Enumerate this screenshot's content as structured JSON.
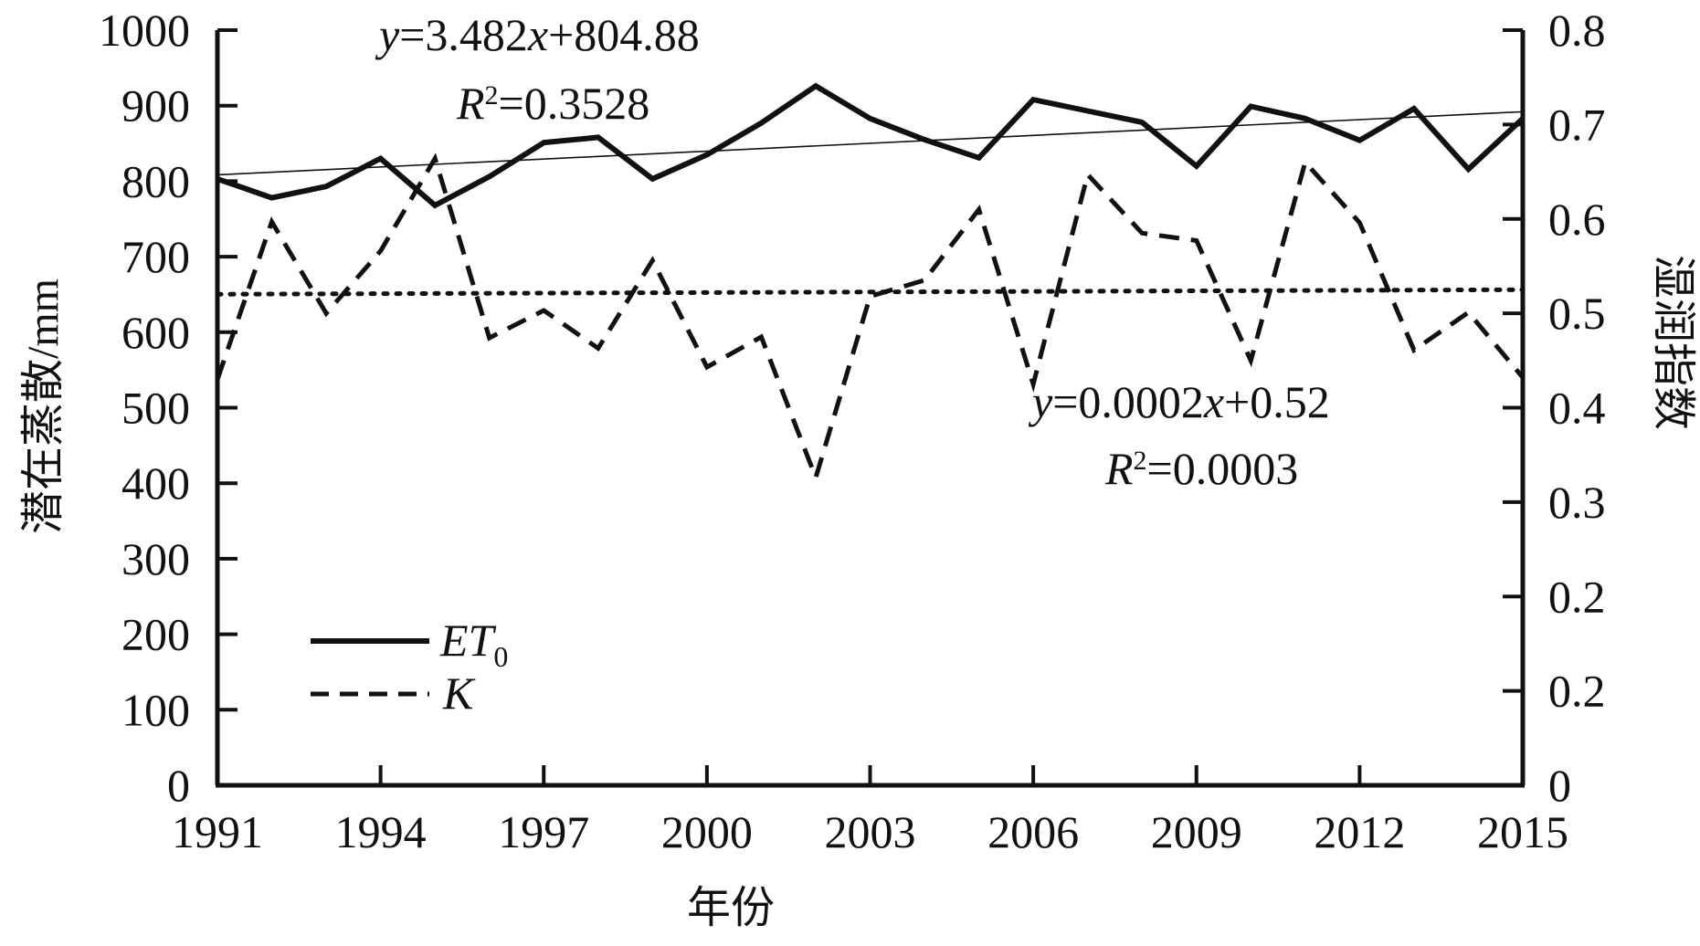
{
  "chart_data": {
    "type": "line",
    "xlabel": "年份",
    "ylabel_left": "潜在蒸散/mm",
    "ylabel_right": "湿润指数",
    "x_ticks": [
      "1991",
      "1994",
      "1997",
      "2000",
      "2003",
      "2006",
      "2009",
      "2012",
      "2015"
    ],
    "y_left_ticks": [
      "0",
      "100",
      "200",
      "300",
      "400",
      "500",
      "600",
      "700",
      "800",
      "900",
      "1000"
    ],
    "y_right_ticks": [
      "0",
      "0.2",
      "0.2",
      "0.3",
      "0.4",
      "0.5",
      "0.6",
      "0.7",
      "0.8"
    ],
    "xlim": [
      1991,
      2015
    ],
    "ylim_left": [
      0,
      1000
    ],
    "ylim_right": [
      0,
      0.8
    ],
    "legend_position": "bottom-left",
    "series": [
      {
        "name": "ET",
        "name_sub": "0",
        "axis": "left",
        "style": "solid",
        "x": [
          1991,
          1992,
          1993,
          1994,
          1995,
          1996,
          1997,
          1998,
          1999,
          2000,
          2001,
          2002,
          2003,
          2004,
          2005,
          2006,
          2007,
          2008,
          2009,
          2010,
          2011,
          2012,
          2013,
          2014,
          2015
        ],
        "values": [
          803,
          778,
          793,
          830,
          768,
          806,
          851,
          858,
          803,
          835,
          877,
          926,
          883,
          855,
          831,
          908,
          893,
          878,
          820,
          899,
          883,
          854,
          896,
          816,
          883
        ]
      },
      {
        "name": "K",
        "axis": "right",
        "style": "dashed",
        "x": [
          1991,
          1992,
          1993,
          1994,
          1995,
          1996,
          1997,
          1998,
          1999,
          2000,
          2001,
          2002,
          2003,
          2004,
          2005,
          2006,
          2007,
          2008,
          2009,
          2010,
          2011,
          2012,
          2013,
          2014,
          2015
        ],
        "values": [
          0.43,
          0.597,
          0.5,
          0.566,
          0.664,
          0.474,
          0.503,
          0.463,
          0.556,
          0.443,
          0.475,
          0.326,
          0.518,
          0.535,
          0.61,
          0.425,
          0.647,
          0.585,
          0.577,
          0.45,
          0.66,
          0.596,
          0.461,
          0.501,
          0.432
        ]
      }
    ],
    "trendlines": [
      {
        "series": "ET",
        "axis": "left",
        "style": "thin-solid",
        "slope": 3.482,
        "intercept": 804.88,
        "equation": "3.482",
        "eq_tail": "+804.88",
        "r2": "=0.3528"
      },
      {
        "series": "K",
        "axis": "right",
        "style": "dotted",
        "slope": 0.0002,
        "intercept": 0.52,
        "equation": "=0.0002",
        "eq_tail": "+0.52",
        "r2": "=0.0003"
      }
    ],
    "annotation_vars": {
      "y": "y",
      "x": "x",
      "r": "R",
      "sup": "2",
      "eq_sign": "="
    }
  }
}
